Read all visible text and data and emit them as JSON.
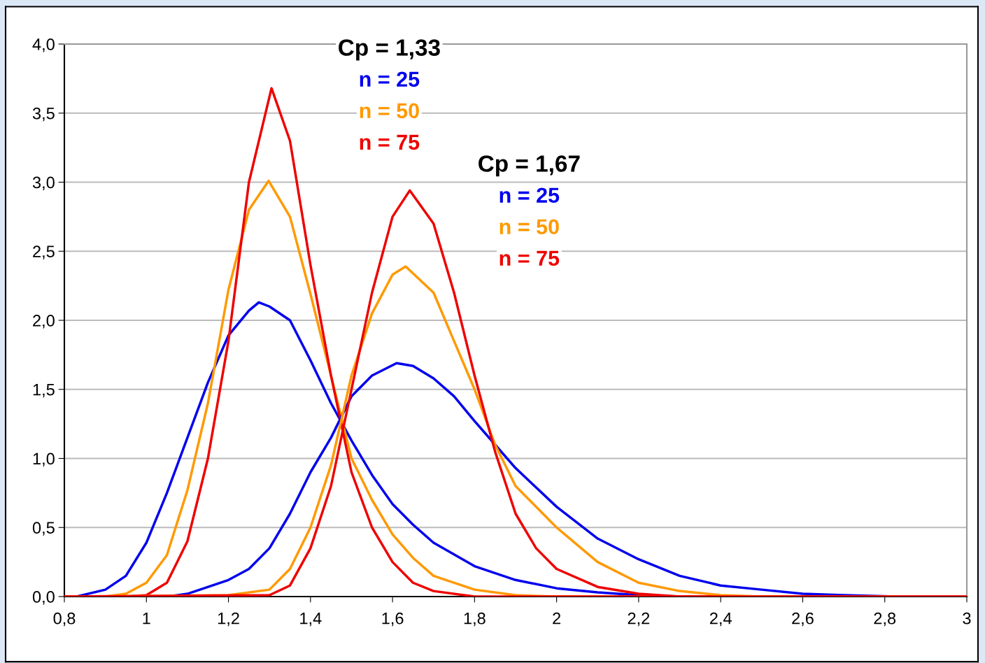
{
  "chart_data": {
    "type": "line",
    "xlim": [
      0.8,
      3
    ],
    "ylim": [
      0,
      4
    ],
    "xticks": [
      {
        "value": 0.8,
        "label": "0,8"
      },
      1,
      {
        "value": 1.2,
        "label": "1,2"
      },
      {
        "value": 1.4,
        "label": "1,4"
      },
      {
        "value": 1.6,
        "label": "1,6"
      },
      {
        "value": 1.8,
        "label": "1,8"
      },
      2,
      {
        "value": 2.2,
        "label": "2,2"
      },
      {
        "value": 2.4,
        "label": "2,4"
      },
      {
        "value": 2.6,
        "label": "2,6"
      },
      {
        "value": 2.8,
        "label": "2,8"
      },
      3
    ],
    "yticks": [
      {
        "value": 0,
        "label": "0,0"
      },
      {
        "value": 0.5,
        "label": "0,5"
      },
      {
        "value": 1,
        "label": "1,0"
      },
      {
        "value": 1.5,
        "label": "1,5"
      },
      {
        "value": 2,
        "label": "2,0"
      },
      {
        "value": 2.5,
        "label": "2,5"
      },
      {
        "value": 3,
        "label": "3,0"
      },
      {
        "value": 3.5,
        "label": "3,5"
      },
      {
        "value": 4,
        "label": "4,0"
      }
    ],
    "grid": "y",
    "legend": false,
    "marker": "none",
    "line_style": "solid",
    "annotations": [
      "Cp = 1,33",
      "n = 25",
      "n = 50",
      "n = 75",
      "Cp = 1,67",
      "n = 25",
      "n = 50",
      "n = 75"
    ],
    "series": [
      {
        "color": "#0000ee",
        "x": [
          0.8,
          0.83,
          0.9,
          0.95,
          1.0,
          1.05,
          1.1,
          1.15,
          1.2,
          1.25,
          1.274,
          1.3,
          1.35,
          1.4,
          1.45,
          1.5,
          1.55,
          1.6,
          1.65,
          1.7,
          1.8,
          1.9,
          2.0,
          2.1,
          2.2,
          2.3,
          3
        ],
        "values": [
          0,
          0,
          0.05,
          0.15,
          0.39,
          0.75,
          1.15,
          1.55,
          1.89,
          2.07,
          2.13,
          2.1,
          2.0,
          1.71,
          1.4,
          1.13,
          0.88,
          0.67,
          0.52,
          0.39,
          0.22,
          0.12,
          0.06,
          0.03,
          0.01,
          0,
          0
        ]
      },
      {
        "color": "#ff9900",
        "x": [
          0.8,
          0.9,
          0.95,
          1.0,
          1.05,
          1.1,
          1.15,
          1.2,
          1.25,
          1.298,
          1.35,
          1.4,
          1.45,
          1.5,
          1.55,
          1.6,
          1.65,
          1.7,
          1.8,
          1.9,
          2.0,
          3
        ],
        "values": [
          0,
          0,
          0.02,
          0.1,
          0.3,
          0.77,
          1.4,
          2.22,
          2.8,
          3.01,
          2.75,
          2.19,
          1.6,
          1.0,
          0.7,
          0.45,
          0.28,
          0.15,
          0.05,
          0.01,
          0,
          0
        ]
      },
      {
        "color": "#ee0000",
        "x": [
          0.8,
          0.95,
          1.0,
          1.05,
          1.1,
          1.15,
          1.2,
          1.25,
          1.305,
          1.35,
          1.4,
          1.45,
          1.5,
          1.55,
          1.6,
          1.65,
          1.7,
          1.8,
          3
        ],
        "values": [
          0,
          0,
          0.01,
          0.1,
          0.4,
          1.0,
          1.85,
          3.0,
          3.68,
          3.3,
          2.4,
          1.6,
          0.9,
          0.5,
          0.25,
          0.1,
          0.04,
          0,
          0
        ]
      },
      {
        "color": "#0000ee",
        "x": [
          0.8,
          1.05,
          1.1,
          1.2,
          1.25,
          1.3,
          1.35,
          1.4,
          1.45,
          1.5,
          1.55,
          1.61,
          1.65,
          1.7,
          1.75,
          1.8,
          1.85,
          1.9,
          2.0,
          2.1,
          2.2,
          2.3,
          2.4,
          2.5,
          2.6,
          2.7,
          2.83,
          3
        ],
        "values": [
          0,
          0,
          0.02,
          0.12,
          0.2,
          0.35,
          0.6,
          0.9,
          1.15,
          1.45,
          1.6,
          1.69,
          1.67,
          1.58,
          1.45,
          1.27,
          1.1,
          0.93,
          0.65,
          0.42,
          0.27,
          0.15,
          0.08,
          0.05,
          0.02,
          0.01,
          0,
          0
        ]
      },
      {
        "color": "#ff9900",
        "x": [
          0.8,
          1.2,
          1.3,
          1.35,
          1.4,
          1.45,
          1.5,
          1.55,
          1.6,
          1.632,
          1.7,
          1.75,
          1.8,
          1.85,
          1.9,
          2.0,
          2.1,
          2.2,
          2.3,
          2.4,
          2.5,
          3
        ],
        "values": [
          0,
          0.01,
          0.05,
          0.2,
          0.5,
          0.95,
          1.6,
          2.05,
          2.33,
          2.39,
          2.2,
          1.85,
          1.5,
          1.1,
          0.8,
          0.5,
          0.25,
          0.1,
          0.04,
          0.01,
          0,
          0
        ]
      },
      {
        "color": "#ee0000",
        "x": [
          0.8,
          1.3,
          1.35,
          1.4,
          1.45,
          1.5,
          1.55,
          1.6,
          1.642,
          1.7,
          1.75,
          1.8,
          1.85,
          1.9,
          1.95,
          2.0,
          2.1,
          2.2,
          2.3,
          3
        ],
        "values": [
          0,
          0.01,
          0.08,
          0.35,
          0.8,
          1.5,
          2.2,
          2.75,
          2.94,
          2.7,
          2.2,
          1.6,
          1.05,
          0.6,
          0.35,
          0.2,
          0.07,
          0.02,
          0,
          0
        ]
      }
    ]
  }
}
